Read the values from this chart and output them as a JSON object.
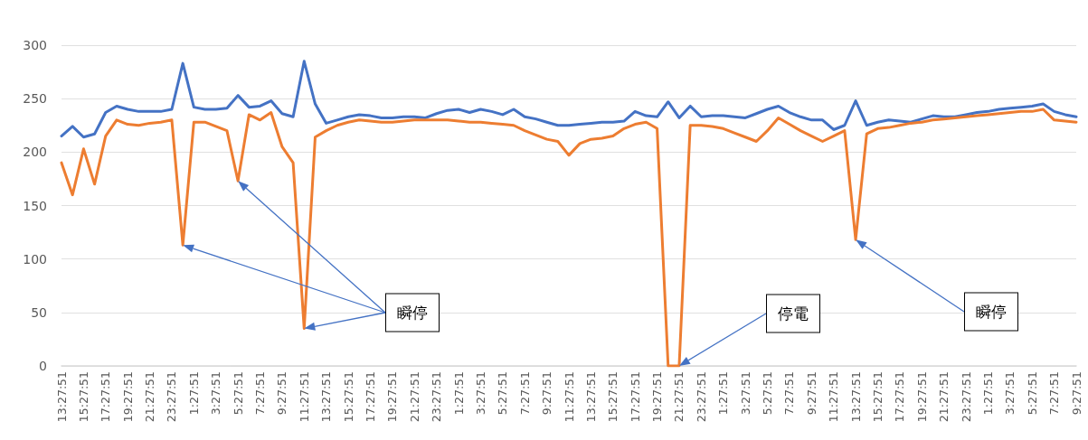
{
  "chart_data": {
    "type": "line",
    "categories": [
      "13:27:51",
      null,
      "15:27:51",
      null,
      "17:27:51",
      null,
      "19:27:51",
      null,
      "21:27:51",
      null,
      "23:27:51",
      null,
      "1:27:51",
      null,
      "3:27:51",
      null,
      "5:27:51",
      null,
      "7:27:51",
      null,
      "9:27:51",
      null,
      "11:27:51",
      null,
      "13:27:51",
      null,
      "15:27:51",
      null,
      "17:27:51",
      null,
      "19:27:51",
      null,
      "21:27:51",
      null,
      "23:27:51",
      null,
      "1:27:51",
      null,
      "3:27:51",
      null,
      "5:27:51",
      null,
      "7:27:51",
      null,
      "9:27:51",
      null,
      "11:27:51",
      null,
      "13:27:51",
      null,
      "15:27:51",
      null,
      "17:27:51",
      null,
      "19:27:51",
      null,
      "21:27:51",
      null,
      "23:27:51",
      null,
      "1:27:51",
      null,
      "3:27:51",
      null,
      "5:27:51",
      null,
      "7:27:51",
      null,
      "9:27:51",
      null,
      "11:27:51",
      null,
      "13:27:51",
      null,
      "15:27:51",
      null,
      "17:27:51",
      null,
      "19:27:51",
      null,
      "21:27:51",
      null,
      "23:27:51",
      null,
      "1:27:51",
      null,
      "3:27:51",
      null,
      "5:27:51",
      null,
      "7:27:51",
      null,
      "9:27:51"
    ],
    "series": [
      {
        "color": "#4472c4",
        "values": [
          215,
          224,
          214,
          217,
          237,
          243,
          240,
          238,
          238,
          238,
          240,
          283,
          242,
          240,
          240,
          241,
          253,
          242,
          243,
          248,
          236,
          233,
          285,
          245,
          227,
          230,
          233,
          235,
          234,
          232,
          232,
          233,
          233,
          232,
          236,
          239,
          240,
          237,
          240,
          238,
          235,
          240,
          233,
          231,
          228,
          225,
          225,
          226,
          227,
          228,
          228,
          229,
          238,
          234,
          233,
          247,
          232,
          243,
          233,
          234,
          234,
          233,
          232,
          236,
          240,
          243,
          237,
          233,
          230,
          230,
          221,
          225,
          248,
          225,
          228,
          230,
          229,
          228,
          231,
          234,
          233,
          233,
          235,
          237,
          238,
          240,
          241,
          242,
          243,
          245,
          238,
          235,
          233
        ]
      },
      {
        "color": "#ed7d31",
        "values": [
          190,
          160,
          203,
          170,
          215,
          230,
          226,
          225,
          227,
          228,
          230,
          113,
          228,
          228,
          224,
          220,
          173,
          235,
          230,
          237,
          205,
          190,
          35,
          214,
          220,
          225,
          228,
          230,
          229,
          228,
          228,
          229,
          230,
          230,
          230,
          230,
          229,
          228,
          228,
          227,
          226,
          225,
          220,
          216,
          212,
          210,
          197,
          208,
          212,
          213,
          215,
          222,
          226,
          228,
          222,
          0,
          0,
          225,
          225,
          224,
          222,
          218,
          214,
          210,
          220,
          232,
          226,
          220,
          215,
          210,
          215,
          220,
          118,
          217,
          222,
          223,
          225,
          227,
          228,
          230,
          231,
          232,
          233,
          234,
          235,
          236,
          237,
          238,
          238,
          240,
          230,
          229,
          228
        ]
      }
    ],
    "ylim": [
      0,
      300
    ],
    "yticks": [
      0,
      50,
      100,
      150,
      200,
      250,
      300
    ],
    "grid": "y",
    "marker": "none",
    "line_style": "solid",
    "annotations": [
      "瞬停",
      "停電",
      "瞬停"
    ]
  }
}
